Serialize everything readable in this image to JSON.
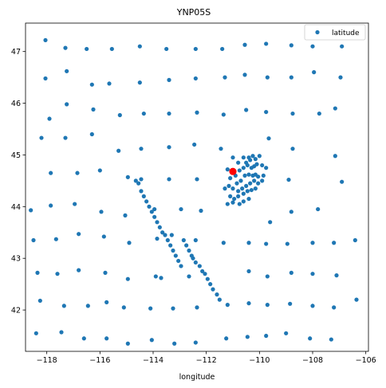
{
  "chart_data": {
    "type": "scatter",
    "title": "YNP05S",
    "xlabel": "longitude",
    "ylabel": "",
    "xlim": [
      -118.8,
      -105.9
    ],
    "ylim": [
      41.2,
      47.55
    ],
    "xticks": [
      -118,
      -116,
      -114,
      -112,
      -110,
      -108,
      -106
    ],
    "yticks": [
      42,
      43,
      44,
      45,
      46,
      47
    ],
    "xtick_labels": [
      "−118",
      "−116",
      "−114",
      "−112",
      "−110",
      "−108",
      "−106"
    ],
    "ytick_labels": [
      "42",
      "43",
      "44",
      "45",
      "46",
      "47"
    ],
    "grid": false,
    "legend": {
      "position": "top-right",
      "entries": [
        "latitude"
      ]
    },
    "colors": {
      "series": "#1f77b4",
      "highlight": "#ff0000"
    },
    "series": [
      {
        "name": "latitude",
        "points": [
          [
            -118.05,
            47.22
          ],
          [
            -117.3,
            47.07
          ],
          [
            -116.5,
            47.05
          ],
          [
            -115.55,
            47.05
          ],
          [
            -114.5,
            47.1
          ],
          [
            -113.5,
            47.05
          ],
          [
            -112.4,
            47.05
          ],
          [
            -111.4,
            47.05
          ],
          [
            -110.55,
            47.13
          ],
          [
            -109.75,
            47.15
          ],
          [
            -108.8,
            47.12
          ],
          [
            -108.0,
            47.1
          ],
          [
            -106.9,
            47.1
          ],
          [
            -118.05,
            46.48
          ],
          [
            -117.25,
            46.62
          ],
          [
            -116.3,
            46.36
          ],
          [
            -115.65,
            46.38
          ],
          [
            -114.5,
            46.4
          ],
          [
            -113.4,
            46.45
          ],
          [
            -112.4,
            46.48
          ],
          [
            -111.3,
            46.5
          ],
          [
            -110.55,
            46.55
          ],
          [
            -109.7,
            46.5
          ],
          [
            -108.8,
            46.5
          ],
          [
            -107.95,
            46.6
          ],
          [
            -106.95,
            46.5
          ],
          [
            -117.9,
            45.7
          ],
          [
            -117.25,
            45.98
          ],
          [
            -116.25,
            45.88
          ],
          [
            -115.25,
            45.77
          ],
          [
            -114.35,
            45.8
          ],
          [
            -113.4,
            45.8
          ],
          [
            -112.35,
            45.82
          ],
          [
            -111.35,
            45.78
          ],
          [
            -110.5,
            45.87
          ],
          [
            -109.75,
            45.83
          ],
          [
            -108.75,
            45.8
          ],
          [
            -107.75,
            45.8
          ],
          [
            -107.15,
            45.9
          ],
          [
            -118.2,
            45.33
          ],
          [
            -117.3,
            45.33
          ],
          [
            -116.3,
            45.4
          ],
          [
            -115.3,
            45.08
          ],
          [
            -114.45,
            45.12
          ],
          [
            -113.4,
            45.15
          ],
          [
            -112.45,
            45.2
          ],
          [
            -111.45,
            45.12
          ],
          [
            -109.65,
            45.32
          ],
          [
            -108.75,
            45.12
          ],
          [
            -107.15,
            44.98
          ],
          [
            -117.85,
            44.65
          ],
          [
            -116.85,
            44.65
          ],
          [
            -116.0,
            44.7
          ],
          [
            -114.95,
            44.57
          ],
          [
            -114.45,
            44.53
          ],
          [
            -113.4,
            44.53
          ],
          [
            -112.35,
            44.53
          ],
          [
            -108.9,
            44.52
          ],
          [
            -106.9,
            44.48
          ],
          [
            -118.6,
            43.93
          ],
          [
            -117.85,
            44.02
          ],
          [
            -116.95,
            44.05
          ],
          [
            -115.95,
            43.9
          ],
          [
            -115.05,
            43.83
          ],
          [
            -113.95,
            43.95
          ],
          [
            -112.95,
            43.95
          ],
          [
            -112.2,
            43.92
          ],
          [
            -109.6,
            43.7
          ],
          [
            -108.8,
            43.9
          ],
          [
            -107.8,
            43.95
          ],
          [
            -118.5,
            43.35
          ],
          [
            -117.65,
            43.37
          ],
          [
            -116.8,
            43.47
          ],
          [
            -115.85,
            43.42
          ],
          [
            -114.9,
            43.3
          ],
          [
            -113.85,
            43.38
          ],
          [
            -113.3,
            43.45
          ],
          [
            -112.4,
            43.35
          ],
          [
            -111.35,
            43.3
          ],
          [
            -110.4,
            43.3
          ],
          [
            -109.75,
            43.28
          ],
          [
            -108.95,
            43.28
          ],
          [
            -108.0,
            43.3
          ],
          [
            -107.2,
            43.3
          ],
          [
            -106.4,
            43.35
          ],
          [
            -118.35,
            42.72
          ],
          [
            -117.6,
            42.7
          ],
          [
            -116.8,
            42.77
          ],
          [
            -115.8,
            42.72
          ],
          [
            -114.95,
            42.6
          ],
          [
            -113.9,
            42.65
          ],
          [
            -113.7,
            42.62
          ],
          [
            -112.65,
            42.65
          ],
          [
            -110.4,
            42.75
          ],
          [
            -109.7,
            42.65
          ],
          [
            -108.8,
            42.72
          ],
          [
            -108.0,
            42.7
          ],
          [
            -107.1,
            42.67
          ],
          [
            -118.25,
            42.18
          ],
          [
            -117.35,
            42.08
          ],
          [
            -116.45,
            42.08
          ],
          [
            -115.75,
            42.15
          ],
          [
            -115.1,
            42.05
          ],
          [
            -114.1,
            42.03
          ],
          [
            -113.25,
            42.03
          ],
          [
            -112.35,
            42.05
          ],
          [
            -111.2,
            42.1
          ],
          [
            -110.4,
            42.13
          ],
          [
            -109.7,
            42.1
          ],
          [
            -108.85,
            42.12
          ],
          [
            -108.0,
            42.08
          ],
          [
            -107.2,
            42.05
          ],
          [
            -106.35,
            42.2
          ],
          [
            -118.4,
            41.55
          ],
          [
            -117.45,
            41.57
          ],
          [
            -116.6,
            41.45
          ],
          [
            -115.75,
            41.45
          ],
          [
            -114.95,
            41.35
          ],
          [
            -114.05,
            41.42
          ],
          [
            -113.2,
            41.35
          ],
          [
            -112.4,
            41.37
          ],
          [
            -111.25,
            41.45
          ],
          [
            -110.45,
            41.48
          ],
          [
            -109.75,
            41.5
          ],
          [
            -109.0,
            41.55
          ],
          [
            -108.1,
            41.45
          ],
          [
            -107.3,
            41.43
          ],
          [
            -114.65,
            44.5
          ],
          [
            -114.55,
            44.45
          ],
          [
            -114.45,
            44.3
          ],
          [
            -114.35,
            44.2
          ],
          [
            -114.25,
            44.1
          ],
          [
            -114.15,
            44.0
          ],
          [
            -114.05,
            43.9
          ],
          [
            -113.95,
            43.8
          ],
          [
            -113.85,
            43.7
          ],
          [
            -113.75,
            43.6
          ],
          [
            -113.65,
            43.5
          ],
          [
            -113.55,
            43.45
          ],
          [
            -113.45,
            43.35
          ],
          [
            -113.35,
            43.25
          ],
          [
            -113.25,
            43.15
          ],
          [
            -113.15,
            43.05
          ],
          [
            -113.05,
            42.95
          ],
          [
            -112.95,
            42.85
          ],
          [
            -112.85,
            43.35
          ],
          [
            -112.75,
            43.25
          ],
          [
            -112.65,
            43.15
          ],
          [
            -112.55,
            43.05
          ],
          [
            -112.5,
            43.0
          ],
          [
            -112.4,
            42.92
          ],
          [
            -112.25,
            42.85
          ],
          [
            -112.15,
            42.75
          ],
          [
            -112.05,
            42.7
          ],
          [
            -111.95,
            42.6
          ],
          [
            -111.85,
            42.5
          ],
          [
            -111.75,
            42.4
          ],
          [
            -111.6,
            42.3
          ],
          [
            -111.5,
            42.2
          ],
          [
            -111.0,
            44.95
          ],
          [
            -110.6,
            44.95
          ],
          [
            -110.4,
            44.95
          ],
          [
            -110.25,
            44.98
          ],
          [
            -110.0,
            44.98
          ],
          [
            -111.2,
            44.72
          ],
          [
            -110.8,
            44.85
          ],
          [
            -110.5,
            44.85
          ],
          [
            -110.35,
            44.9
          ],
          [
            -110.15,
            44.92
          ],
          [
            -111.1,
            44.55
          ],
          [
            -110.9,
            44.6
          ],
          [
            -110.75,
            44.7
          ],
          [
            -110.6,
            44.75
          ],
          [
            -110.45,
            44.8
          ],
          [
            -110.3,
            44.75
          ],
          [
            -110.2,
            44.78
          ],
          [
            -110.1,
            44.82
          ],
          [
            -109.9,
            44.8
          ],
          [
            -109.75,
            44.75
          ],
          [
            -110.85,
            44.45
          ],
          [
            -110.7,
            44.5
          ],
          [
            -110.55,
            44.6
          ],
          [
            -110.4,
            44.62
          ],
          [
            -110.25,
            44.6
          ],
          [
            -110.15,
            44.62
          ],
          [
            -110.05,
            44.58
          ],
          [
            -109.85,
            44.6
          ],
          [
            -111.3,
            44.35
          ],
          [
            -111.15,
            44.4
          ],
          [
            -111.0,
            44.35
          ],
          [
            -110.8,
            44.3
          ],
          [
            -110.65,
            44.35
          ],
          [
            -110.5,
            44.4
          ],
          [
            -110.35,
            44.45
          ],
          [
            -110.2,
            44.5
          ],
          [
            -110.05,
            44.45
          ],
          [
            -109.9,
            44.5
          ],
          [
            -111.1,
            44.2
          ],
          [
            -110.95,
            44.15
          ],
          [
            -110.8,
            44.2
          ],
          [
            -110.6,
            44.25
          ],
          [
            -110.45,
            44.3
          ],
          [
            -110.3,
            44.32
          ],
          [
            -110.15,
            44.35
          ],
          [
            -111.2,
            44.05
          ],
          [
            -111.0,
            44.08
          ],
          [
            -110.75,
            44.05
          ],
          [
            -110.6,
            44.1
          ],
          [
            -110.4,
            44.15
          ]
        ]
      }
    ],
    "highlight": {
      "x": -111.0,
      "y": 44.68
    }
  }
}
